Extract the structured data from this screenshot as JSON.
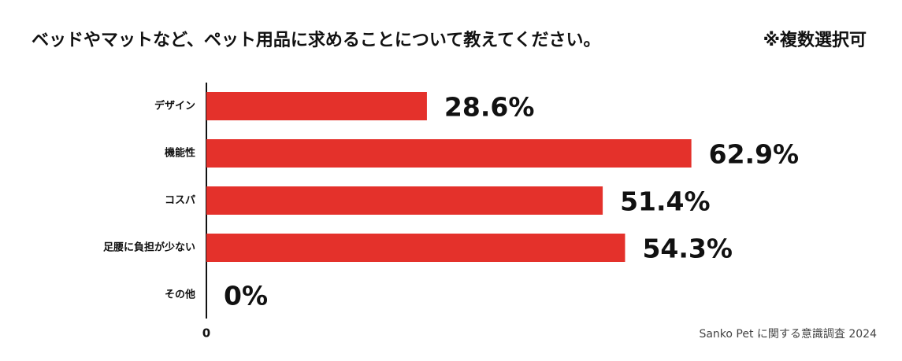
{
  "chart_data": {
    "type": "bar",
    "orientation": "horizontal",
    "title": "ベッドやマットなど、ペット用品に求めることについて教えてください。",
    "subtitle": "※複数選択可",
    "source": "Sanko Pet に関する意識調査 2024",
    "categories": [
      "デザイン",
      "機能性",
      "コスパ",
      "足腰に負担が少ない",
      "その他"
    ],
    "values": [
      28.6,
      62.9,
      51.4,
      54.3,
      0
    ],
    "value_labels": [
      "28.6%",
      "62.9%",
      "51.4%",
      "54.3%",
      "0%"
    ],
    "color": "#e4312b",
    "xlim": [
      0,
      80
    ],
    "xticks": [
      0
    ],
    "grid": false
  }
}
